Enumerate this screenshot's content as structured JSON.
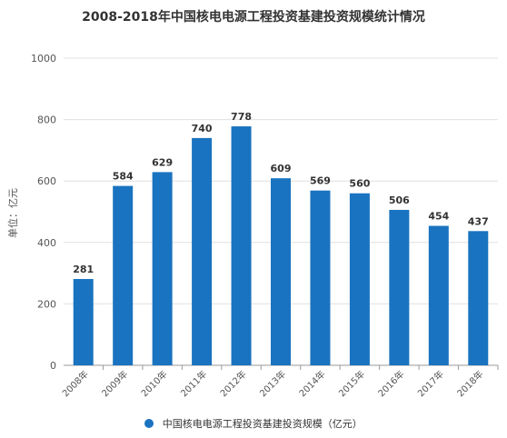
{
  "title": "2008-2018年中国核电电源工程投资基建投资规模统计情况",
  "colors": {
    "bar": "#1a73c0",
    "grid": "#e0e0e0",
    "axis": "#999999",
    "text": "#333333"
  },
  "chart_data": {
    "type": "bar",
    "title": "2008-2018年中国核电电源工程投资基建投资规模统计情况",
    "categories": [
      "2008年",
      "2009年",
      "2010年",
      "2011年",
      "2012年",
      "2013年",
      "2014年",
      "2015年",
      "2016年",
      "2017年",
      "2018年"
    ],
    "series": [
      {
        "name": "中国核电电源工程投资基建投资规模（亿元）",
        "values": [
          281,
          584,
          629,
          740,
          778,
          609,
          569,
          560,
          506,
          454,
          437
        ]
      }
    ],
    "ylabel": "单位：亿元",
    "ylim": [
      0,
      1000
    ],
    "yticks": [
      0,
      200,
      400,
      600,
      800,
      1000
    ],
    "grid": true,
    "legend": "bottom-center"
  },
  "legend_label": "中国核电电源工程投资基建投资规模（亿元）"
}
